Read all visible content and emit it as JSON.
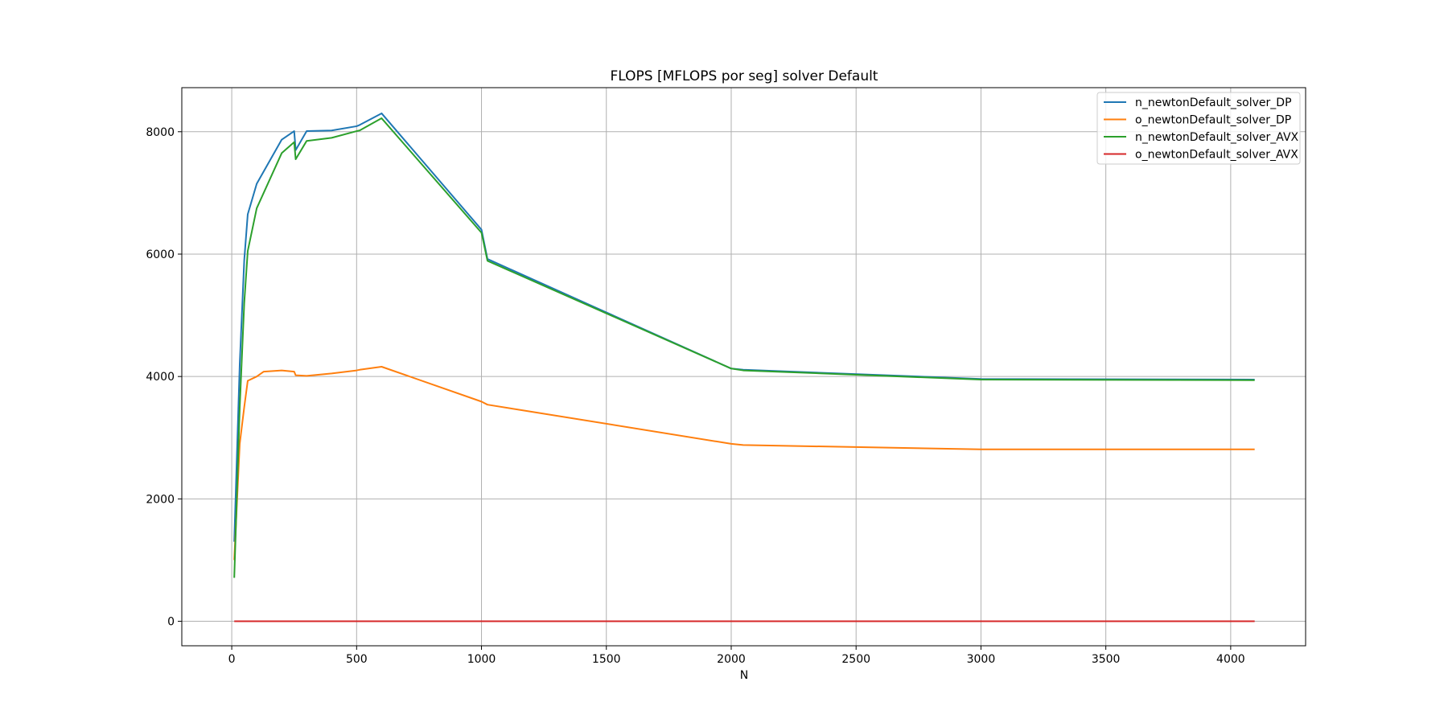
{
  "chart_data": {
    "type": "line",
    "title": "FLOPS [MFLOPS por seg] solver Default",
    "xlabel": "N",
    "ylabel": "",
    "xlim": [
      -200,
      4300
    ],
    "ylim": [
      -400,
      8720
    ],
    "xticks": [
      0,
      500,
      1000,
      1500,
      2000,
      2500,
      3000,
      3500,
      4000
    ],
    "yticks": [
      0,
      2000,
      4000,
      6000,
      8000
    ],
    "grid": true,
    "legend_position": "top-right",
    "series": [
      {
        "name": "n_newtonDefault_solver_DP",
        "color": "#1f77b4",
        "x": [
          10,
          32,
          50,
          64,
          100,
          200,
          250,
          256,
          300,
          400,
          500,
          512,
          600,
          1000,
          1024,
          2000,
          2048,
          3000,
          4096
        ],
        "y": [
          1300,
          4200,
          5900,
          6650,
          7150,
          7870,
          8010,
          7700,
          8010,
          8020,
          8090,
          8110,
          8300,
          6400,
          5920,
          4130,
          4110,
          3960,
          3950
        ]
      },
      {
        "name": "o_newtonDefault_solver_DP",
        "color": "#ff7f0e",
        "x": [
          10,
          32,
          50,
          64,
          100,
          128,
          200,
          250,
          256,
          300,
          400,
          500,
          512,
          600,
          1000,
          1024,
          2000,
          2048,
          3000,
          4096
        ],
        "y": [
          1000,
          2900,
          3500,
          3930,
          4000,
          4080,
          4100,
          4080,
          4020,
          4010,
          4050,
          4100,
          4110,
          4160,
          3590,
          3540,
          2900,
          2880,
          2810,
          2810
        ]
      },
      {
        "name": "n_newtonDefault_solver_AVX",
        "color": "#2ca02c",
        "x": [
          10,
          32,
          50,
          64,
          100,
          200,
          250,
          256,
          300,
          400,
          500,
          512,
          600,
          1000,
          1024,
          2000,
          2048,
          3000,
          4096
        ],
        "y": [
          710,
          3500,
          5200,
          6050,
          6750,
          7650,
          7830,
          7550,
          7850,
          7900,
          8010,
          8020,
          8220,
          6350,
          5890,
          4130,
          4100,
          3950,
          3940
        ]
      },
      {
        "name": "o_newtonDefault_solver_AVX",
        "color": "#d62728",
        "x": [
          10,
          4096
        ],
        "y": [
          0,
          0
        ]
      }
    ]
  }
}
